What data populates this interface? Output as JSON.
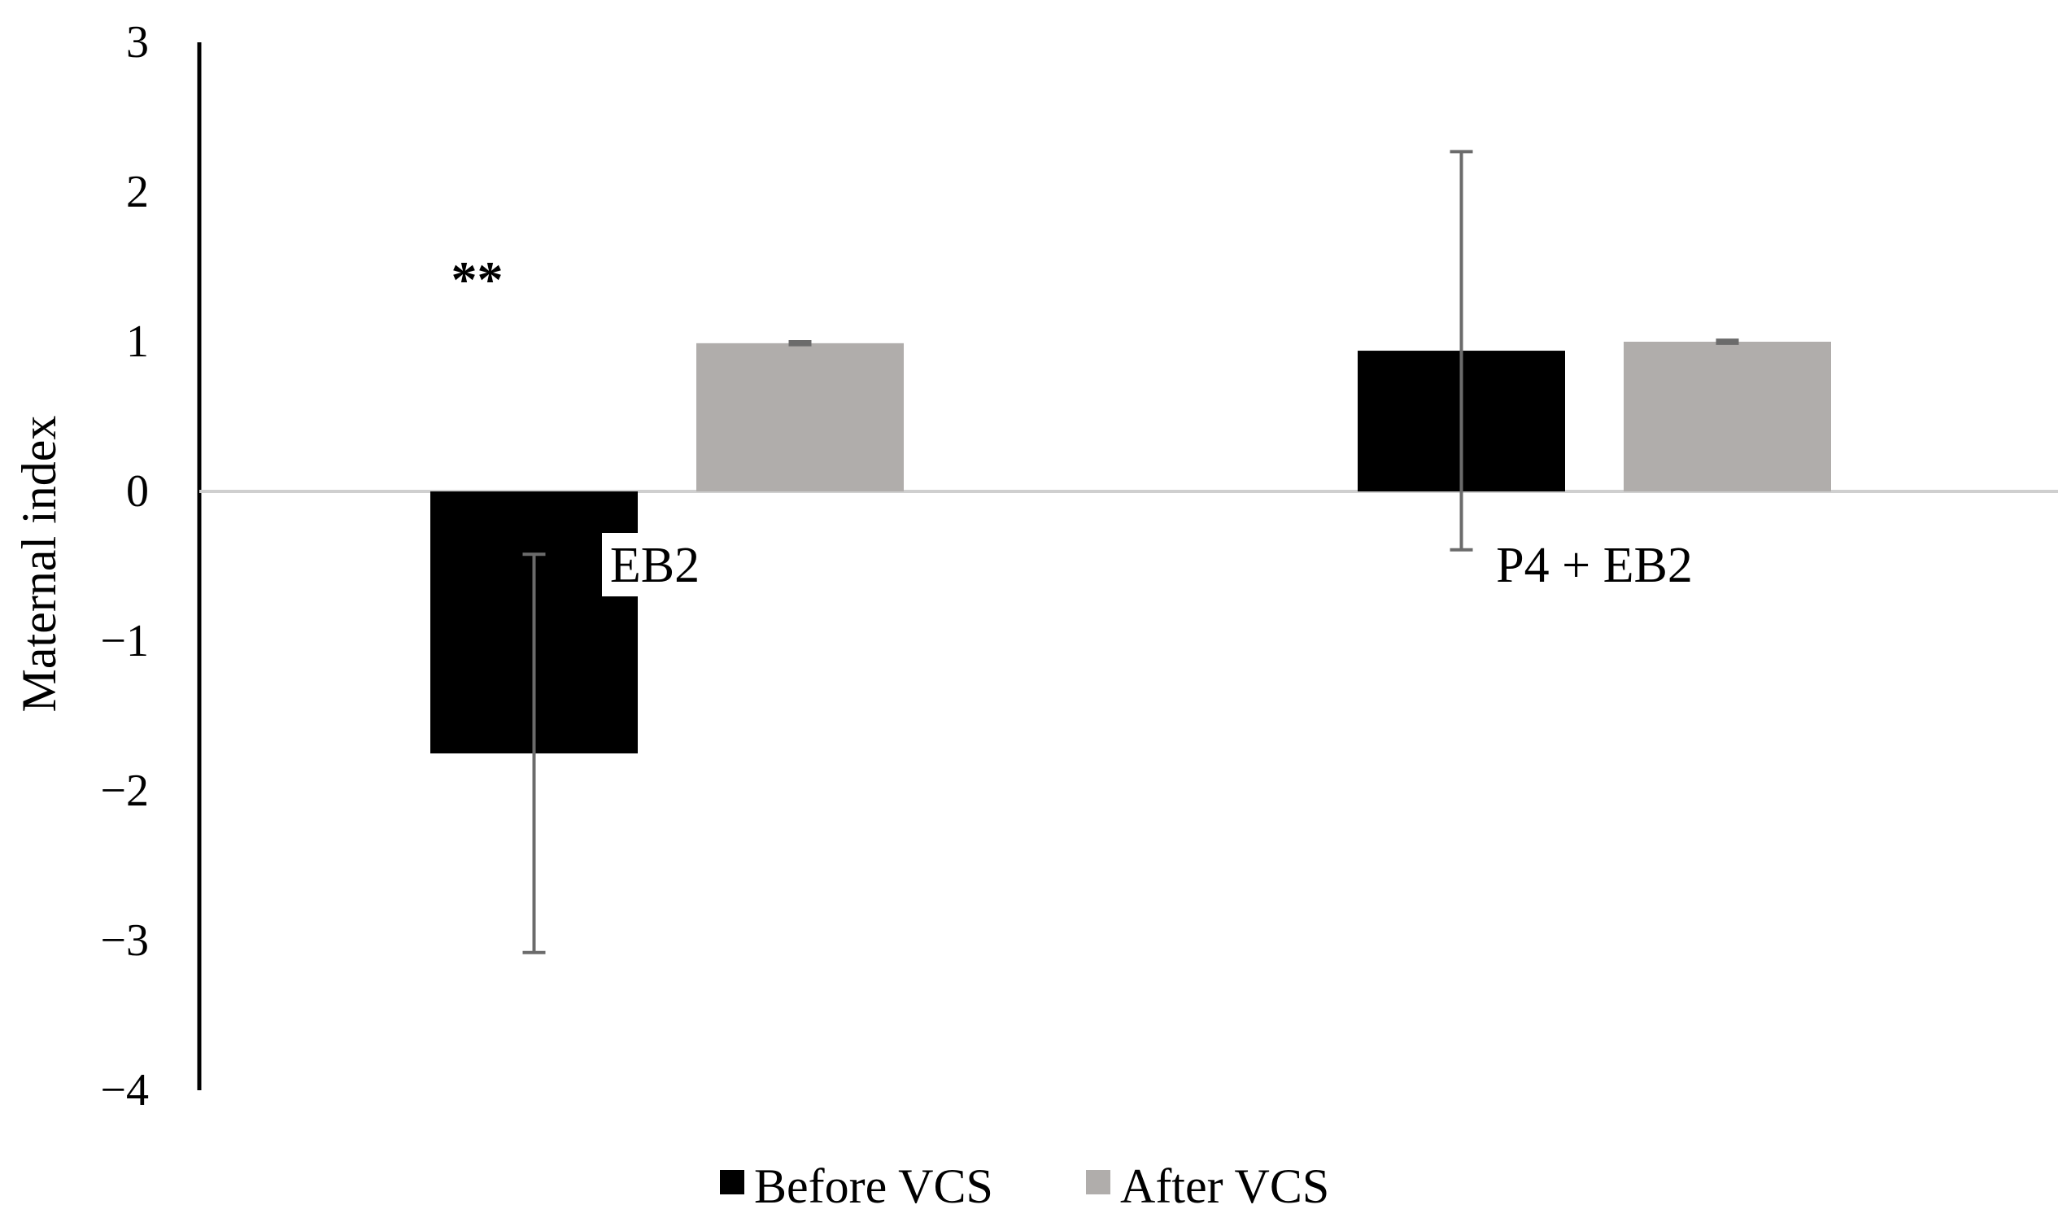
{
  "chart_data": {
    "type": "bar",
    "categories": [
      "EB2",
      "P4 + EB2"
    ],
    "series": [
      {
        "name": "Before VCS",
        "color": "#000000",
        "values": [
          -1.75,
          0.94
        ],
        "error": [
          1.33,
          1.33
        ]
      },
      {
        "name": "After VCS",
        "color": "#b0adab",
        "values": [
          0.99,
          1.0
        ],
        "error": [
          0.01,
          0.01
        ]
      }
    ],
    "ylabel": "Maternal index",
    "xlabel": "",
    "ylim": [
      -4,
      3
    ],
    "yticks": [
      "3",
      "2",
      "1",
      "0",
      "−1",
      "−2",
      "−3",
      "−4"
    ],
    "grid": false,
    "legend": "bottom",
    "annotations": [
      {
        "text": "**",
        "category": "EB2",
        "series": "Before VCS"
      }
    ]
  }
}
